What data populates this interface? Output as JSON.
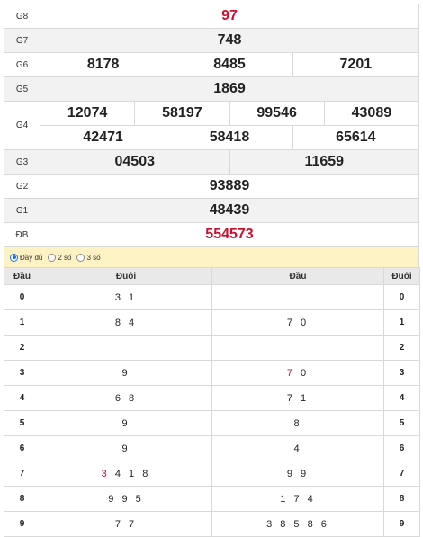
{
  "prizes": {
    "g8": {
      "label": "G8",
      "numbers": [
        "97"
      ]
    },
    "g7": {
      "label": "G7",
      "numbers": [
        "748"
      ]
    },
    "g6": {
      "label": "G6",
      "numbers": [
        "8178",
        "8485",
        "7201"
      ]
    },
    "g5": {
      "label": "G5",
      "numbers": [
        "1869"
      ]
    },
    "g4": {
      "label": "G4",
      "numbers": [
        "12074",
        "58197",
        "99546",
        "43089",
        "42471",
        "58418",
        "65614"
      ]
    },
    "g3": {
      "label": "G3",
      "numbers": [
        "04503",
        "11659"
      ]
    },
    "g2": {
      "label": "G2",
      "numbers": [
        "93889"
      ]
    },
    "g1": {
      "label": "G1",
      "numbers": [
        "48439"
      ]
    },
    "db": {
      "label": "ĐB",
      "numbers": [
        "554573"
      ]
    }
  },
  "options": {
    "full": "Đầy đủ",
    "two": "2 số",
    "three": "3 số",
    "selected": "full"
  },
  "loto": {
    "headers": {
      "dau": "Đầu",
      "duoi": "Đuôi"
    },
    "rows": [
      {
        "key": "0",
        "tails": "3 1",
        "heads": ""
      },
      {
        "key": "1",
        "tails": "8 4",
        "heads": "7 0"
      },
      {
        "key": "2",
        "tails": "",
        "heads": ""
      },
      {
        "key": "3",
        "tails": "9",
        "heads_hl": "7",
        "heads_rest": " 0"
      },
      {
        "key": "4",
        "tails": "6 8",
        "heads": "7 1"
      },
      {
        "key": "5",
        "tails": "9",
        "heads": "8"
      },
      {
        "key": "6",
        "tails": "9",
        "heads": "4"
      },
      {
        "key": "7",
        "tails_hl": "3",
        "tails_rest": " 4 1 8",
        "heads": "9 9"
      },
      {
        "key": "8",
        "tails": "9 9 5",
        "heads": "1 7 4"
      },
      {
        "key": "9",
        "tails": "7 7",
        "heads": "3 8 5 8 6"
      }
    ]
  },
  "colors": {
    "special": "#c8102e",
    "option_bar": "#fdf2c4"
  }
}
